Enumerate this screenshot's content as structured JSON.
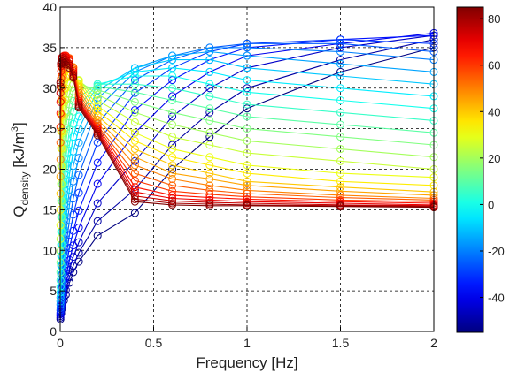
{
  "chart_data": {
    "type": "line",
    "xlabel": "Frequency [Hz]",
    "ylabel_main": "Q",
    "ylabel_sub": "density",
    "ylabel_tail": " [kJ/m",
    "ylabel_sup": "3",
    "ylabel_close": "]",
    "xlim": [
      0,
      2
    ],
    "ylim": [
      0,
      40
    ],
    "xticks": [
      0,
      0.5,
      1,
      1.5,
      2
    ],
    "xtick_labels": [
      "0",
      "0.5",
      "1",
      "1.5",
      "2"
    ],
    "yticks": [
      0,
      5,
      10,
      15,
      20,
      25,
      30,
      35,
      40
    ],
    "ytick_labels": [
      "0",
      "5",
      "10",
      "15",
      "20",
      "25",
      "30",
      "35",
      "40"
    ],
    "grid": "dashed",
    "x": [
      0.001,
      0.005,
      0.01,
      0.02,
      0.03,
      0.05,
      0.07,
      0.1,
      0.2,
      0.4,
      0.6,
      0.8,
      1.0,
      1.5,
      2.0
    ],
    "colorbar": {
      "range": [
        -55,
        85
      ],
      "ticks": [
        -40,
        -20,
        0,
        20,
        40,
        60,
        80
      ],
      "tick_labels": [
        "-40",
        "-20",
        "0",
        "20",
        "40",
        "60",
        "80"
      ],
      "colormap": "jet"
    },
    "series": [
      {
        "temperature": -55,
        "values": [
          1.5,
          2.2,
          2.8,
          3.8,
          4.5,
          6.0,
          7.3,
          8.6,
          11.8,
          14.6,
          20.0,
          24.0,
          27.5,
          32.0,
          35.0
        ]
      },
      {
        "temperature": -50,
        "values": [
          1.7,
          2.5,
          3.1,
          4.2,
          5.1,
          6.7,
          8.1,
          9.7,
          13.6,
          17.5,
          23.0,
          27.0,
          30.0,
          33.5,
          36.0
        ]
      },
      {
        "temperature": -45,
        "values": [
          1.9,
          2.8,
          3.5,
          4.8,
          5.8,
          7.6,
          9.2,
          11.0,
          15.8,
          21.0,
          26.5,
          30.0,
          32.5,
          35.0,
          36.5
        ]
      },
      {
        "temperature": -40,
        "values": [
          2.1,
          3.1,
          4.0,
          5.5,
          6.7,
          8.8,
          10.6,
          12.8,
          18.2,
          24.5,
          29.0,
          32.0,
          34.0,
          35.5,
          36.8
        ]
      },
      {
        "temperature": -35,
        "values": [
          2.3,
          3.5,
          4.6,
          6.3,
          7.8,
          10.3,
          12.4,
          14.9,
          20.8,
          27.3,
          31.0,
          33.5,
          35.0,
          36.0,
          36.5
        ]
      },
      {
        "temperature": -30,
        "values": [
          2.6,
          4.0,
          5.3,
          7.3,
          9.0,
          11.9,
          14.4,
          17.1,
          23.3,
          29.4,
          32.5,
          34.5,
          35.5,
          36.0,
          35.5
        ]
      },
      {
        "temperature": -25,
        "values": [
          2.9,
          4.6,
          6.1,
          8.4,
          10.4,
          13.7,
          16.4,
          19.3,
          25.6,
          31.0,
          33.5,
          35.0,
          35.5,
          35.5,
          34.5
        ]
      },
      {
        "temperature": -20,
        "values": [
          3.3,
          5.3,
          7.0,
          9.7,
          12.0,
          15.6,
          18.5,
          21.4,
          27.5,
          32.0,
          34.0,
          35.0,
          35.0,
          34.5,
          33.5
        ]
      },
      {
        "temperature": -15,
        "values": [
          3.7,
          6.1,
          8.1,
          11.1,
          13.6,
          17.5,
          20.4,
          23.3,
          28.8,
          32.5,
          34.0,
          34.5,
          34.0,
          33.0,
          32.0
        ]
      },
      {
        "temperature": -10,
        "values": [
          4.2,
          7.0,
          9.3,
          12.7,
          15.4,
          19.4,
          22.2,
          25.0,
          29.7,
          32.5,
          33.5,
          33.5,
          32.5,
          31.5,
          30.5
        ]
      },
      {
        "temperature": -5,
        "values": [
          4.8,
          8.1,
          10.7,
          14.4,
          17.3,
          21.3,
          24.0,
          26.5,
          30.3,
          32.0,
          32.5,
          32.0,
          31.0,
          30.0,
          29.0
        ]
      },
      {
        "temperature": 0,
        "values": [
          5.5,
          9.3,
          12.3,
          16.3,
          19.3,
          23.1,
          25.6,
          27.8,
          30.5,
          31.5,
          31.5,
          30.5,
          29.5,
          28.5,
          27.5
        ]
      },
      {
        "temperature": 5,
        "values": [
          6.3,
          10.7,
          14.1,
          18.4,
          21.3,
          24.9,
          27.1,
          28.9,
          30.5,
          30.5,
          30.0,
          29.0,
          28.0,
          27.0,
          26.0
        ]
      },
      {
        "temperature": 10,
        "values": [
          7.3,
          12.3,
          16.0,
          20.4,
          23.2,
          26.5,
          28.4,
          29.8,
          30.2,
          29.5,
          28.5,
          27.5,
          26.5,
          25.5,
          24.5
        ]
      },
      {
        "temperature": 15,
        "values": [
          8.5,
          14.1,
          18.1,
          22.5,
          25.1,
          28.0,
          29.6,
          30.5,
          29.8,
          28.3,
          27.0,
          26.0,
          25.0,
          24.0,
          23.0
        ]
      },
      {
        "temperature": 20,
        "values": [
          9.9,
          16.1,
          20.3,
          24.5,
          26.9,
          29.3,
          30.5,
          30.9,
          29.2,
          27.0,
          25.5,
          24.5,
          23.5,
          22.5,
          21.5
        ]
      },
      {
        "temperature": 25,
        "values": [
          11.4,
          18.2,
          22.5,
          26.5,
          28.5,
          30.5,
          31.3,
          31.0,
          28.5,
          25.8,
          24.0,
          23.0,
          22.0,
          21.0,
          20.0
        ]
      },
      {
        "temperature": 30,
        "values": [
          13.1,
          20.4,
          24.6,
          28.3,
          30.0,
          31.5,
          31.8,
          30.9,
          27.8,
          24.5,
          22.5,
          21.5,
          20.5,
          19.5,
          19.0
        ]
      },
      {
        "temperature": 35,
        "values": [
          15.0,
          22.6,
          26.6,
          29.9,
          31.3,
          32.3,
          32.2,
          30.6,
          27.2,
          23.5,
          21.5,
          20.5,
          19.5,
          18.5,
          18.0
        ]
      },
      {
        "temperature": 40,
        "values": [
          17.0,
          24.7,
          28.5,
          31.2,
          32.3,
          32.9,
          32.5,
          30.2,
          26.6,
          22.5,
          20.5,
          19.5,
          18.5,
          17.8,
          17.2
        ]
      },
      {
        "temperature": 45,
        "values": [
          19.1,
          26.7,
          30.1,
          32.3,
          33.1,
          33.4,
          32.6,
          29.8,
          26.1,
          21.5,
          19.5,
          18.8,
          18.0,
          17.3,
          16.8
        ]
      },
      {
        "temperature": 50,
        "values": [
          21.2,
          28.5,
          31.5,
          33.1,
          33.6,
          33.6,
          32.6,
          29.4,
          25.7,
          20.5,
          18.8,
          18.0,
          17.4,
          16.8,
          16.4
        ]
      },
      {
        "temperature": 55,
        "values": [
          23.3,
          30.0,
          32.5,
          33.6,
          33.9,
          33.7,
          32.5,
          29.0,
          25.4,
          19.5,
          18.0,
          17.4,
          17.0,
          16.5,
          16.2
        ]
      },
      {
        "temperature": 60,
        "values": [
          25.2,
          31.2,
          33.2,
          33.9,
          34.0,
          33.6,
          32.3,
          28.7,
          25.2,
          18.6,
          17.3,
          16.9,
          16.6,
          16.2,
          16.0
        ]
      },
      {
        "temperature": 65,
        "values": [
          26.9,
          32.1,
          33.6,
          34.0,
          34.0,
          33.5,
          32.1,
          28.4,
          25.0,
          17.8,
          16.8,
          16.5,
          16.3,
          16.0,
          15.8
        ]
      },
      {
        "temperature": 70,
        "values": [
          28.3,
          32.7,
          33.8,
          33.9,
          33.8,
          33.3,
          31.9,
          28.2,
          24.8,
          17.2,
          16.4,
          16.2,
          16.0,
          15.8,
          15.6
        ]
      },
      {
        "temperature": 75,
        "values": [
          29.4,
          33.0,
          33.8,
          33.7,
          33.5,
          33.0,
          31.7,
          28.0,
          24.6,
          16.7,
          16.1,
          15.9,
          15.8,
          15.6,
          15.5
        ]
      },
      {
        "temperature": 80,
        "values": [
          30.2,
          33.1,
          33.6,
          33.4,
          33.2,
          32.8,
          31.5,
          27.8,
          24.4,
          16.3,
          15.8,
          15.7,
          15.6,
          15.5,
          15.4
        ]
      },
      {
        "temperature": 85,
        "values": [
          30.7,
          33.0,
          33.3,
          33.1,
          32.9,
          32.5,
          31.3,
          27.6,
          24.2,
          16.0,
          15.6,
          15.5,
          15.5,
          15.4,
          15.3
        ]
      }
    ]
  }
}
